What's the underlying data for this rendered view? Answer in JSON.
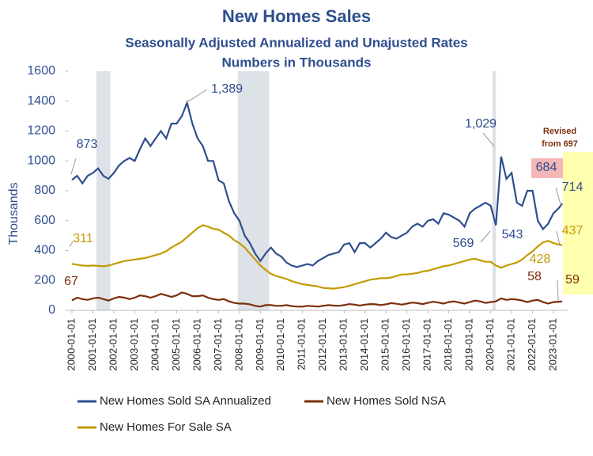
{
  "chart_data": {
    "type": "line",
    "title": "New Homes Sales",
    "subtitle": [
      "Seasonally Adjusted Annualized and Unajusted Rates",
      "Numbers in Thousands"
    ],
    "y_label": "Thousands",
    "xlim": [
      "1999-11-01",
      "2023-09-01"
    ],
    "xticks": [
      "2000-01-01",
      "2001-01-01",
      "2002-01-01",
      "2003-01-01",
      "2004-01-01",
      "2005-01-01",
      "2006-01-01",
      "2007-01-01",
      "2008-01-01",
      "2009-01-01",
      "2010-01-01",
      "2011-01-01",
      "2012-01-01",
      "2013-01-01",
      "2014-01-01",
      "2015-01-01",
      "2016-01-01",
      "2017-01-01",
      "2018-01-01",
      "2019-01-01",
      "2020-01-01",
      "2021-01-01",
      "2022-01-01",
      "2023-01-01"
    ],
    "ylim": [
      0,
      1600
    ],
    "yticks": [
      0,
      200,
      400,
      600,
      800,
      {
        "value": 1000,
        "label": "1000"
      },
      1200,
      1400,
      1600
    ],
    "recessions": [
      [
        "2001-03-01",
        "2001-11-01"
      ],
      [
        "2007-12-01",
        "2009-06-01"
      ],
      [
        "2020-02-01",
        "2020-04-01"
      ]
    ],
    "x": [
      "2000-01-01",
      "2000-04-01",
      "2000-07-01",
      "2000-10-01",
      "2001-01-01",
      "2001-04-01",
      "2001-07-01",
      "2001-10-01",
      "2002-01-01",
      "2002-04-01",
      "2002-07-01",
      "2002-10-01",
      "2003-01-01",
      "2003-04-01",
      "2003-07-01",
      "2003-10-01",
      "2004-01-01",
      "2004-04-01",
      "2004-07-01",
      "2004-10-01",
      "2005-01-01",
      "2005-04-01",
      "2005-07-01",
      "2005-10-01",
      "2006-01-01",
      "2006-04-01",
      "2006-07-01",
      "2006-10-01",
      "2007-01-01",
      "2007-04-01",
      "2007-07-01",
      "2007-10-01",
      "2008-01-01",
      "2008-04-01",
      "2008-07-01",
      "2008-10-01",
      "2009-01-01",
      "2009-04-01",
      "2009-07-01",
      "2009-10-01",
      "2010-01-01",
      "2010-04-01",
      "2010-07-01",
      "2010-10-01",
      "2011-01-01",
      "2011-04-01",
      "2011-07-01",
      "2011-10-01",
      "2012-01-01",
      "2012-04-01",
      "2012-07-01",
      "2012-10-01",
      "2013-01-01",
      "2013-04-01",
      "2013-07-01",
      "2013-10-01",
      "2014-01-01",
      "2014-04-01",
      "2014-07-01",
      "2014-10-01",
      "2015-01-01",
      "2015-04-01",
      "2015-07-01",
      "2015-10-01",
      "2016-01-01",
      "2016-04-01",
      "2016-07-01",
      "2016-10-01",
      "2017-01-01",
      "2017-04-01",
      "2017-07-01",
      "2017-10-01",
      "2018-01-01",
      "2018-04-01",
      "2018-07-01",
      "2018-10-01",
      "2019-01-01",
      "2019-04-01",
      "2019-07-01",
      "2019-10-01",
      "2020-01-01",
      "2020-04-01",
      "2020-07-01",
      "2020-10-01",
      "2021-01-01",
      "2021-04-01",
      "2021-07-01",
      "2021-10-01",
      "2022-01-01",
      "2022-04-01",
      "2022-07-01",
      "2022-10-01",
      "2023-01-01",
      "2023-04-01",
      "2023-06-01"
    ],
    "series": [
      {
        "name": "New Homes Sold SA Annualized",
        "color": "#2e4e8e",
        "values": [
          873,
          900,
          850,
          900,
          920,
          950,
          900,
          880,
          920,
          970,
          1000,
          1020,
          1000,
          1080,
          1150,
          1100,
          1150,
          1200,
          1150,
          1250,
          1250,
          1300,
          1389,
          1250,
          1150,
          1100,
          1000,
          1000,
          870,
          850,
          730,
          650,
          600,
          500,
          450,
          380,
          330,
          380,
          420,
          380,
          360,
          320,
          300,
          290,
          300,
          310,
          300,
          330,
          350,
          370,
          380,
          390,
          440,
          450,
          390,
          450,
          450,
          420,
          450,
          480,
          520,
          490,
          480,
          500,
          520,
          560,
          580,
          560,
          600,
          610,
          580,
          650,
          640,
          620,
          600,
          560,
          650,
          680,
          700,
          720,
          700,
          569,
          1029,
          880,
          920,
          720,
          700,
          800,
          800,
          600,
          543,
          580,
          650,
          684,
          714
        ]
      },
      {
        "name": "New Homes Sold NSA",
        "color": "#7b2e0a",
        "values": [
          67,
          85,
          75,
          70,
          80,
          85,
          75,
          65,
          80,
          90,
          85,
          75,
          85,
          100,
          95,
          85,
          95,
          110,
          100,
          90,
          100,
          120,
          110,
          95,
          95,
          100,
          85,
          75,
          70,
          75,
          60,
          50,
          45,
          45,
          40,
          30,
          25,
          35,
          35,
          30,
          30,
          35,
          28,
          25,
          25,
          30,
          28,
          25,
          30,
          35,
          32,
          30,
          35,
          42,
          38,
          32,
          38,
          42,
          40,
          35,
          40,
          48,
          44,
          38,
          45,
          52,
          48,
          42,
          50,
          58,
          52,
          45,
          55,
          60,
          52,
          45,
          55,
          65,
          60,
          50,
          55,
          60,
          80,
          70,
          75,
          72,
          65,
          55,
          65,
          70,
          55,
          45,
          55,
          58,
          59
        ]
      },
      {
        "name": "New Homes For Sale SA",
        "color": "#c49a00",
        "values": [
          311,
          305,
          300,
          298,
          300,
          298,
          295,
          300,
          310,
          320,
          330,
          335,
          340,
          345,
          350,
          360,
          370,
          380,
          395,
          420,
          440,
          460,
          490,
          520,
          550,
          570,
          560,
          545,
          540,
          520,
          500,
          470,
          450,
          420,
          380,
          340,
          300,
          270,
          245,
          230,
          220,
          210,
          195,
          185,
          175,
          170,
          165,
          160,
          150,
          148,
          145,
          150,
          155,
          165,
          175,
          185,
          195,
          205,
          210,
          215,
          215,
          220,
          230,
          240,
          240,
          245,
          250,
          260,
          265,
          275,
          285,
          295,
          300,
          310,
          320,
          330,
          340,
          345,
          335,
          325,
          325,
          300,
          285,
          300,
          310,
          320,
          340,
          370,
          395,
          428,
          455,
          465,
          450,
          440,
          437
        ]
      }
    ],
    "annotations": [
      "873",
      "1,389",
      "311",
      "67",
      "1,029",
      "569",
      "543",
      "684",
      "Revised",
      "from 697",
      "714",
      "437",
      "428",
      "58",
      "59"
    ]
  }
}
